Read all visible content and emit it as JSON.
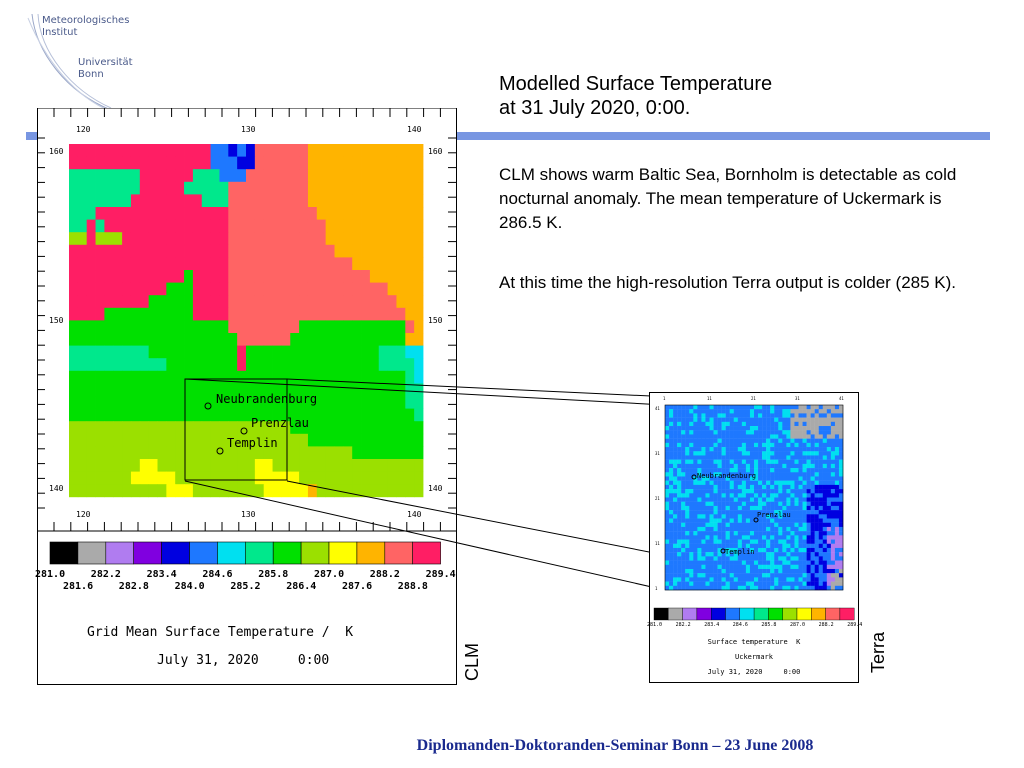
{
  "logo": {
    "line1": "Meteorologisches",
    "line2": "Institut",
    "line3": "Universität",
    "line4": "Bonn"
  },
  "slide": {
    "title_line1": "Modelled Surface Temperature",
    "title_line2": "at 31 July 2020, 0:00.",
    "paragraph1": "CLM shows warm Baltic Sea, Bornholm is detectable as cold nocturnal anomaly. The mean temperature of Uckermark is 286.5 K.",
    "paragraph2": "At this time the high-resolution Terra output is colder (285 K).",
    "footer": "Diplomanden-Doktoranden-Seminar Bonn – 23 June 2008"
  },
  "clm": {
    "side_label": "CLM",
    "x_ticks": [
      "120",
      "130",
      "140"
    ],
    "y_ticks": [
      "160",
      "150",
      "140"
    ],
    "places": [
      "Neubrandenburg",
      "Prenzlau",
      "Templin"
    ],
    "colorbar_top": [
      "281.0",
      "282.2",
      "283.4",
      "284.6",
      "285.8",
      "287.0",
      "288.2",
      "289.4"
    ],
    "colorbar_bottom": [
      "281.6",
      "282.8",
      "284.0",
      "285.2",
      "286.4",
      "287.6",
      "288.8"
    ],
    "caption": "Grid Mean Surface Temperature /  K",
    "date": "July 31, 2020     0:00"
  },
  "terra": {
    "side_label": "Terra",
    "top_ticks": [
      "1",
      "11",
      "21",
      "31",
      "41"
    ],
    "left_ticks": [
      "41",
      "31",
      "21",
      "11",
      "1"
    ],
    "places": [
      "Neubrandenburg",
      "Prenzlau",
      "Templin"
    ],
    "colorbar_labels": [
      "281.0",
      "282.2",
      "283.4",
      "284.6",
      "285.8",
      "287.0",
      "288.2",
      "289.4"
    ],
    "caption": "Surface temperature  K",
    "region": "Uckermark",
    "date": "July 31, 2020     0:00"
  },
  "palette": [
    "#000000",
    "#aaaaaa",
    "#b07cf0",
    "#8000e0",
    "#0000e0",
    "#1e78ff",
    "#00e0f0",
    "#00e88c",
    "#00e000",
    "#9be000",
    "#ffff00",
    "#ffb400",
    "#ff6464",
    "#ff1e64"
  ]
}
